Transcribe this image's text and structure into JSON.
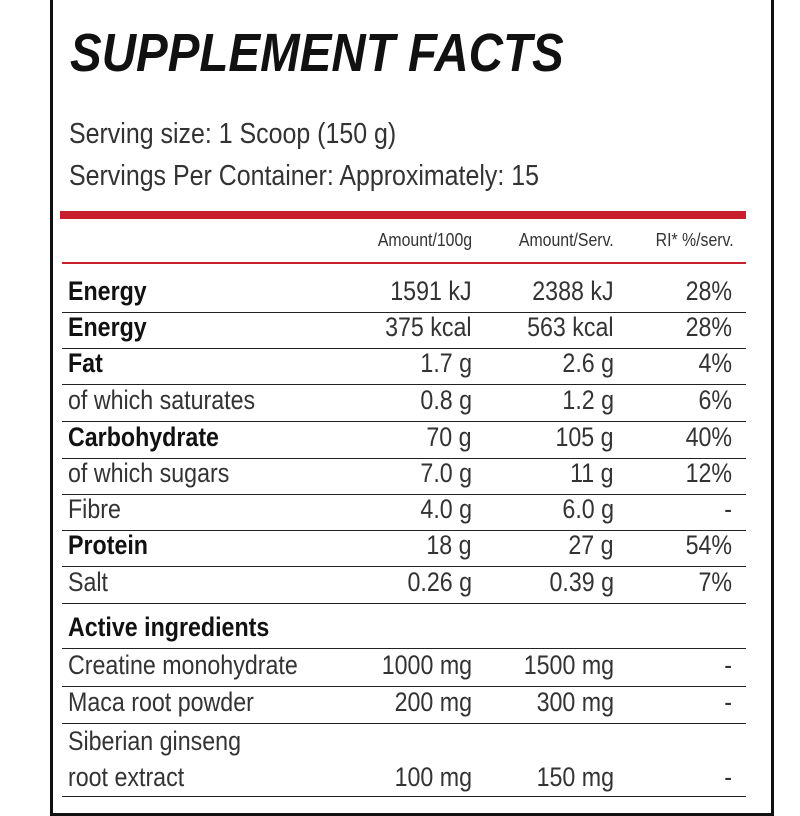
{
  "title": "SUPPLEMENT FACTS",
  "serving_size": "Serving size: 1 Scoop (150 g)",
  "servings_per_container": "Servings Per Container: Approximately: 15",
  "columns": [
    "Amount/100g",
    "Amount/Serv.",
    "RI* %/serv."
  ],
  "nutrients": [
    {
      "label": "Energy",
      "bold": true,
      "per100": "1591 kJ",
      "perServ": "2388 kJ",
      "ri": "28%"
    },
    {
      "label": "Energy",
      "bold": true,
      "per100": "375 kcal",
      "perServ": "563 kcal",
      "ri": "28%"
    },
    {
      "label": "Fat",
      "bold": true,
      "per100": "1.7 g",
      "perServ": "2.6 g",
      "ri": "4%"
    },
    {
      "label": "of which saturates",
      "bold": false,
      "per100": "0.8 g",
      "perServ": "1.2 g",
      "ri": "6%"
    },
    {
      "label": "Carbohydrate",
      "bold": true,
      "per100": "70 g",
      "perServ": "105 g",
      "ri": "40%"
    },
    {
      "label": "of which sugars",
      "bold": false,
      "per100": "7.0 g",
      "perServ": "11 g",
      "ri": "12%"
    },
    {
      "label": "Fibre",
      "bold": false,
      "per100": "4.0 g",
      "perServ": "6.0 g",
      "ri": "-"
    },
    {
      "label": "Protein",
      "bold": true,
      "per100": "18 g",
      "perServ": "27 g",
      "ri": "54%"
    },
    {
      "label": "Salt",
      "bold": false,
      "per100": "0.26 g",
      "perServ": "0.39 g",
      "ri": "7%"
    }
  ],
  "active_ingredients_title": "Active ingredients",
  "active_ingredients": [
    {
      "label": "Creatine monohydrate",
      "per100": "1000 mg",
      "perServ": "1500 mg",
      "ri": "-"
    },
    {
      "label": "Maca root powder",
      "per100": "200 mg",
      "perServ": "300 mg",
      "ri": "-"
    },
    {
      "label_line1": "Siberian ginseng",
      "label_line2": "root extract",
      "per100": "100 mg",
      "perServ": "150 mg",
      "ri": "-"
    }
  ],
  "colors": {
    "accent_red": "#c8202a",
    "text": "#1a1a1a"
  }
}
